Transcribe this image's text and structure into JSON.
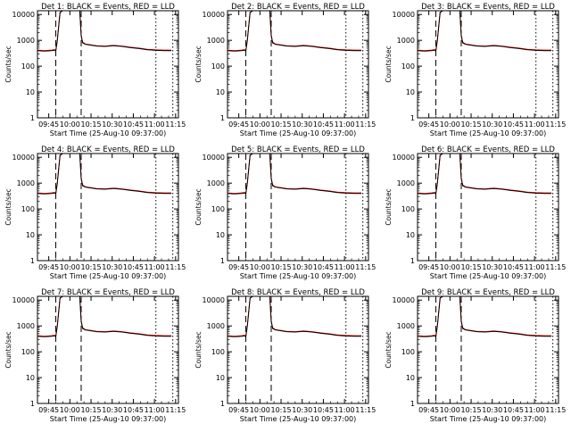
{
  "chart_data": {
    "type": "line",
    "common": {
      "xlabel": "Start Time (25-Aug-10 09:37:00)",
      "ylabel": "Counts/sec",
      "x_ticks": [
        "09:45",
        "10:00",
        "10:15",
        "10:30",
        "10:45",
        "11:00",
        "11:15"
      ],
      "x_tick_minutes": [
        8,
        23,
        38,
        53,
        68,
        83,
        98
      ],
      "y_ticks": [
        "1",
        "10",
        "100",
        "1000",
        "10000"
      ],
      "y_tick_values": [
        1,
        10,
        100,
        1000,
        10000
      ],
      "xlim_minutes": [
        0,
        100
      ],
      "ylim": [
        1,
        14000
      ],
      "yscale": "log",
      "dashed_lines_minutes": [
        13,
        31
      ],
      "dotted_lines_minutes": [
        84,
        96
      ],
      "series_colors": {
        "Events": "#000000",
        "LLD": "#ff0000"
      }
    },
    "panels": [
      {
        "title": "Det 1: BLACK = Events, RED = LLD"
      },
      {
        "title": "Det 2: BLACK = Events, RED = LLD"
      },
      {
        "title": "Det 3: BLACK = Events, RED = LLD"
      },
      {
        "title": "Det 4: BLACK = Events, RED = LLD"
      },
      {
        "title": "Det 5: BLACK = Events, RED = LLD"
      },
      {
        "title": "Det 6: BLACK = Events, RED = LLD"
      },
      {
        "title": "Det 7: BLACK = Events, RED = LLD"
      },
      {
        "title": "Det 8: BLACK = Events, RED = LLD"
      },
      {
        "title": "Det 9: BLACK = Events, RED = LLD"
      }
    ],
    "series": [
      {
        "name": "Events",
        "x": [
          0,
          5,
          10,
          12,
          13,
          14,
          16,
          18,
          20,
          22,
          24,
          26,
          28,
          30,
          31,
          32,
          34,
          38,
          42,
          48,
          54,
          60,
          66,
          72,
          78,
          84,
          90,
          95
        ],
        "y": [
          400,
          380,
          400,
          420,
          380,
          900,
          12000,
          14000,
          14000,
          14000,
          14000,
          14000,
          14000,
          14000,
          1500,
          800,
          700,
          650,
          600,
          580,
          620,
          580,
          520,
          480,
          430,
          410,
          400,
          400
        ]
      },
      {
        "name": "LLD",
        "x": [
          0,
          5,
          10,
          12,
          13,
          14,
          16,
          18,
          20,
          22,
          24,
          26,
          28,
          30,
          31,
          32,
          34,
          38,
          42,
          48,
          54,
          60,
          66,
          72,
          78,
          84,
          90,
          95
        ],
        "y": [
          420,
          400,
          420,
          440,
          400,
          950,
          12000,
          14000,
          14000,
          14000,
          14000,
          14000,
          14000,
          14000,
          1600,
          850,
          720,
          670,
          620,
          600,
          640,
          600,
          540,
          500,
          450,
          430,
          420,
          420
        ]
      }
    ]
  }
}
